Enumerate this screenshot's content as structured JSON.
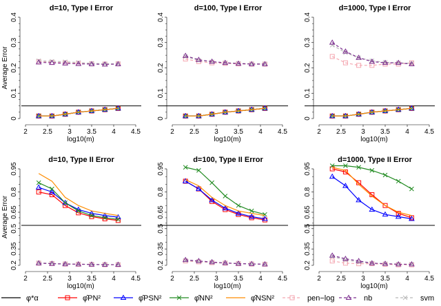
{
  "legend": [
    {
      "key": "oracle",
      "label": "φ*α",
      "color": "#000000",
      "marker": "none",
      "dash": false
    },
    {
      "key": "PN2",
      "label": "φ̂PN²",
      "color": "#ff0000",
      "marker": "square",
      "dash": false
    },
    {
      "key": "PSN2",
      "label": "φ̂PSN²",
      "color": "#0000ff",
      "marker": "triangle",
      "dash": false
    },
    {
      "key": "NN2",
      "label": "φ̂NN²",
      "color": "#228b22",
      "marker": "x",
      "dash": false
    },
    {
      "key": "NSN2",
      "label": "φ̂NSN²",
      "color": "#ff8c00",
      "marker": "none",
      "dash": false
    },
    {
      "key": "penlog",
      "label": "pen−log",
      "color": "#f4a6b0",
      "marker": "square",
      "dash": true
    },
    {
      "key": "nb",
      "label": "nb",
      "color": "#7b2d8e",
      "marker": "triangle",
      "dash": true
    },
    {
      "key": "svm",
      "label": "svm",
      "color": "#b8b8b8",
      "marker": "x",
      "dash": true
    }
  ],
  "chart_data": [
    {
      "type": "line",
      "title": "d=10, Type I Error",
      "xlabel": "log10(m)",
      "ylabel": "Average Error",
      "xlim": [
        2,
        4.5
      ],
      "xticks": [
        "2",
        "2.5",
        "3",
        "3.5",
        "4",
        "4.5"
      ],
      "yticks": [
        "0",
        "0.1",
        "0.2",
        "0.3",
        "0.4"
      ],
      "ylim": [
        0,
        0.4
      ],
      "hline": 0.05,
      "x": [
        2.3,
        2.6,
        2.9,
        3.2,
        3.5,
        3.8,
        4.1
      ],
      "series": {
        "PN2": [
          0.01,
          0.01,
          0.017,
          0.025,
          0.03,
          0.035,
          0.04
        ],
        "PSN2": [
          0.01,
          0.01,
          0.017,
          0.025,
          0.03,
          0.035,
          0.04
        ],
        "NN2": [
          0.01,
          0.01,
          0.017,
          0.025,
          0.03,
          0.035,
          0.04
        ],
        "NSN2": [
          0.01,
          0.01,
          0.017,
          0.025,
          0.03,
          0.035,
          0.04
        ],
        "penlog": [
          0.225,
          0.222,
          0.22,
          0.218,
          0.216,
          0.215,
          0.216
        ],
        "nb": [
          0.222,
          0.22,
          0.218,
          0.216,
          0.215,
          0.214,
          0.215
        ],
        "svm": [
          0.228,
          0.226,
          0.224,
          0.221,
          0.218,
          0.216,
          0.216
        ]
      }
    },
    {
      "type": "line",
      "title": "d=100, Type I Error",
      "xlabel": "log10(m)",
      "ylabel": "",
      "xlim": [
        2,
        4.5
      ],
      "xticks": [
        "2",
        "2.5",
        "3",
        "3.5",
        "4",
        "4.5"
      ],
      "yticks": [
        "0",
        "0.1",
        "0.2",
        "0.3",
        "0.4"
      ],
      "ylim": [
        0,
        0.4
      ],
      "hline": 0.05,
      "x": [
        2.3,
        2.6,
        2.9,
        3.2,
        3.5,
        3.8,
        4.1
      ],
      "series": {
        "PN2": [
          0.01,
          0.01,
          0.017,
          0.025,
          0.03,
          0.035,
          0.04
        ],
        "PSN2": [
          0.01,
          0.01,
          0.017,
          0.025,
          0.03,
          0.035,
          0.04
        ],
        "NN2": [
          0.01,
          0.01,
          0.017,
          0.025,
          0.03,
          0.035,
          0.04
        ],
        "NSN2": [
          0.01,
          0.01,
          0.017,
          0.025,
          0.03,
          0.035,
          0.04
        ],
        "penlog": [
          0.235,
          0.225,
          0.22,
          0.218,
          0.216,
          0.215,
          0.215
        ],
        "nb": [
          0.248,
          0.232,
          0.225,
          0.22,
          0.217,
          0.215,
          0.215
        ],
        "svm": [
          0.245,
          0.23,
          0.224,
          0.22,
          0.218,
          0.216,
          0.216
        ]
      }
    },
    {
      "type": "line",
      "title": "d=1000, Type I Error",
      "xlabel": "log10(m)",
      "ylabel": "",
      "xlim": [
        2,
        4.5
      ],
      "xticks": [
        "2",
        "2.5",
        "3",
        "3.5",
        "4",
        "4.5"
      ],
      "yticks": [
        "0",
        "0.1",
        "0.2",
        "0.3",
        "0.4"
      ],
      "ylim": [
        0,
        0.4
      ],
      "hline": 0.05,
      "x": [
        2.3,
        2.6,
        2.9,
        3.2,
        3.5,
        3.8,
        4.1
      ],
      "series": {
        "PN2": [
          0.01,
          0.01,
          0.017,
          0.025,
          0.03,
          0.035,
          0.04
        ],
        "PSN2": [
          0.01,
          0.01,
          0.017,
          0.025,
          0.03,
          0.035,
          0.04
        ],
        "NN2": [
          0.01,
          0.01,
          0.017,
          0.025,
          0.03,
          0.035,
          0.04
        ],
        "NSN2": [
          0.01,
          0.01,
          0.017,
          0.025,
          0.03,
          0.035,
          0.04
        ],
        "penlog": [
          0.245,
          0.22,
          0.21,
          0.21,
          0.215,
          0.215,
          0.22
        ],
        "nb": [
          0.3,
          0.265,
          0.24,
          0.225,
          0.22,
          0.22,
          0.215
        ],
        "svm": [
          0.29,
          0.26,
          0.24,
          0.228,
          0.222,
          0.22,
          0.218
        ]
      }
    },
    {
      "type": "line",
      "title": "d=10, Type II Error",
      "xlabel": "log10(m)",
      "ylabel": "Average Error",
      "xlim": [
        2,
        4.5
      ],
      "xticks": [
        "2",
        "2.5",
        "3",
        "3.5",
        "4",
        "4.5"
      ],
      "yticks": [
        "0.2",
        "0.35",
        "0.5",
        "0.65",
        "0.8",
        "0.95"
      ],
      "ylim": [
        0.2,
        0.95
      ],
      "hline": 0.53,
      "x": [
        2.3,
        2.6,
        2.9,
        3.2,
        3.5,
        3.8,
        4.1
      ],
      "series": {
        "PN2": [
          0.8,
          0.78,
          0.7,
          0.645,
          0.61,
          0.59,
          0.575
        ],
        "PSN2": [
          0.83,
          0.8,
          0.72,
          0.67,
          0.64,
          0.62,
          0.605
        ],
        "NN2": [
          0.86,
          0.82,
          0.72,
          0.66,
          0.62,
          0.6,
          0.585
        ],
        "NSN2": [
          0.92,
          0.87,
          0.76,
          0.7,
          0.66,
          0.64,
          0.62
        ],
        "penlog": [
          0.22,
          0.216,
          0.212,
          0.21,
          0.208,
          0.206,
          0.206
        ],
        "nb": [
          0.22,
          0.215,
          0.212,
          0.21,
          0.208,
          0.206,
          0.206
        ],
        "svm": [
          0.222,
          0.218,
          0.214,
          0.211,
          0.209,
          0.207,
          0.207
        ]
      }
    },
    {
      "type": "line",
      "title": "d=100, Type II Error",
      "xlabel": "log10(m)",
      "ylabel": "",
      "xlim": [
        2,
        4.5
      ],
      "xticks": [
        "2",
        "2.5",
        "3",
        "3.5",
        "4",
        "4.5"
      ],
      "yticks": [
        "0.2",
        "0.35",
        "0.5",
        "0.65",
        "0.8",
        "0.95"
      ],
      "ylim": [
        0.2,
        0.95
      ],
      "hline": 0.53,
      "x": [
        2.3,
        2.6,
        2.9,
        3.2,
        3.5,
        3.8,
        4.1
      ],
      "series": {
        "PN2": [
          0.87,
          0.82,
          0.73,
          0.67,
          0.63,
          0.6,
          0.58
        ],
        "PSN2": [
          0.87,
          0.82,
          0.74,
          0.68,
          0.64,
          0.61,
          0.59
        ],
        "NN2": [
          0.96,
          0.94,
          0.86,
          0.77,
          0.7,
          0.66,
          0.63
        ],
        "NSN2": [
          0.88,
          0.84,
          0.76,
          0.7,
          0.66,
          0.64,
          0.62
        ],
        "penlog": [
          0.24,
          0.232,
          0.225,
          0.22,
          0.215,
          0.212,
          0.21
        ],
        "nb": [
          0.25,
          0.24,
          0.23,
          0.222,
          0.216,
          0.213,
          0.21
        ],
        "svm": [
          0.245,
          0.236,
          0.228,
          0.221,
          0.216,
          0.212,
          0.21
        ]
      }
    },
    {
      "type": "line",
      "title": "d=1000, Type II Error",
      "xlabel": "log10(m)",
      "ylabel": "",
      "xlim": [
        2,
        4.5
      ],
      "xticks": [
        "2",
        "2.5",
        "3",
        "3.5",
        "4",
        "4.5"
      ],
      "yticks": [
        "0.2",
        "0.35",
        "0.5",
        "0.65",
        "0.8",
        "0.95"
      ],
      "ylim": [
        0.2,
        0.95
      ],
      "hline": 0.53,
      "x": [
        2.3,
        2.6,
        2.9,
        3.2,
        3.5,
        3.8,
        4.1
      ],
      "series": {
        "PN2": [
          0.95,
          0.93,
          0.86,
          0.78,
          0.7,
          0.64,
          0.6
        ],
        "PSN2": [
          0.9,
          0.84,
          0.74,
          0.67,
          0.63,
          0.61,
          0.59
        ],
        "NN2": [
          0.97,
          0.97,
          0.96,
          0.94,
          0.91,
          0.87,
          0.82
        ],
        "NSN2": [
          0.96,
          0.94,
          0.85,
          0.77,
          0.7,
          0.65,
          0.62
        ],
        "penlog": [
          0.24,
          0.22,
          0.215,
          0.215,
          0.21,
          0.205,
          0.205
        ],
        "nb": [
          0.29,
          0.26,
          0.24,
          0.22,
          0.215,
          0.21,
          0.21
        ],
        "svm": [
          0.28,
          0.25,
          0.23,
          0.22,
          0.215,
          0.21,
          0.21
        ]
      }
    }
  ]
}
